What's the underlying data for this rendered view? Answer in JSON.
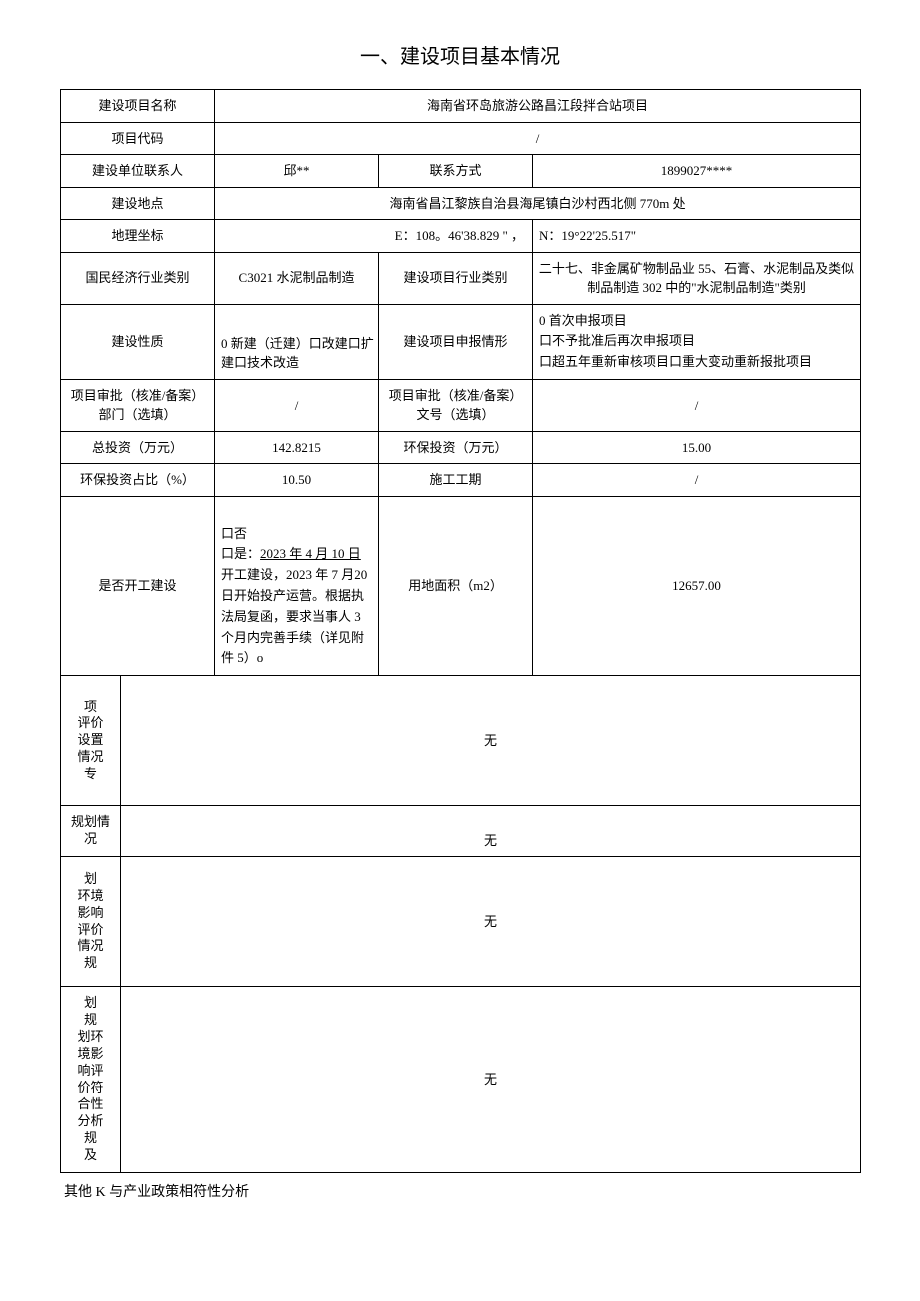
{
  "title": "一、建设项目基本情况",
  "rows": {
    "r1": {
      "label": "建设项目名称",
      "value": "海南省环岛旅游公路昌江段拌合站项目"
    },
    "r2": {
      "label": "项目代码",
      "value": "/"
    },
    "r3": {
      "label": "建设单位联系人",
      "value1": "邱**",
      "label2": "联系方式",
      "value2": "1899027****"
    },
    "r4": {
      "label": "建设地点",
      "value": "海南省昌江黎族自治县海尾镇白沙村西北侧 770m 处"
    },
    "r5": {
      "label": "地理坐标",
      "value1": "E：108。46'38.829 \" ，",
      "value2": "N：19°22'25.517\""
    },
    "r6": {
      "label": "国民经济行业类别",
      "value1": "C3021 水泥制品制造",
      "label2": "建设项目行业类别",
      "value2": "二十七、非金属矿物制品业 55、石膏、水泥制品及类似制品制造 302 中的\"水泥制品制造\"类别"
    },
    "r7": {
      "label": "建设性质",
      "value1": "0 新建（迁建）口改建口扩建口技术改造",
      "label2": "建设项目申报情形",
      "value2_line1": "0 首次申报项目",
      "value2_line2": "口不予批准后再次申报项目",
      "value2_line3": "口超五年重新审核项目口重大变动重新报批项目"
    },
    "r8": {
      "label": "项目审批（核准/备案）部门（选填）",
      "value1": "/",
      "label2": "项目审批（核准/备案）文号（选填）",
      "value2": "/"
    },
    "r9": {
      "label": "总投资（万元）",
      "value1": "142.8215",
      "label2": "环保投资（万元）",
      "value2": "15.00"
    },
    "r10": {
      "label": "环保投资占比（%）",
      "value1": "10.50",
      "label2": "施工工期",
      "value2": "/"
    },
    "r11": {
      "label": "是否开工建设",
      "value1_line1": "口否",
      "value1_line2a": "口是：",
      "value1_line2b": "2023 年 4 月 10 日",
      "value1_line3": "开工建设，2023 年 7 月20 日开始投产运营。根据执法局复函，要求当事人 3 个月内完善手续（详见附件 5）o",
      "label2": "用地面积（m2）",
      "value2": "12657.00"
    },
    "section1": {
      "label_lines": [
        "项",
        "评价",
        "设置",
        "情况",
        "专"
      ],
      "value": "无"
    },
    "section2": {
      "label_lines": [
        "规划情",
        "况"
      ],
      "value": "无"
    },
    "section3": {
      "label_lines": [
        "划",
        "环境",
        "影响",
        "评价",
        "情况",
        "规"
      ],
      "value": "无"
    },
    "section4": {
      "label_left_lines": [
        "划",
        "规",
        "划环",
        "境影",
        "响评",
        "价符",
        "合性",
        "分析",
        "规",
        "及"
      ],
      "value": "无"
    }
  },
  "bottom": "其他 K 与产业政策相符性分析",
  "colors": {
    "text": "#000000",
    "border": "#000000",
    "background": "#ffffff"
  },
  "typography": {
    "body_font": "SimSun",
    "title_size_pt": 20,
    "cell_size_pt": 13
  }
}
